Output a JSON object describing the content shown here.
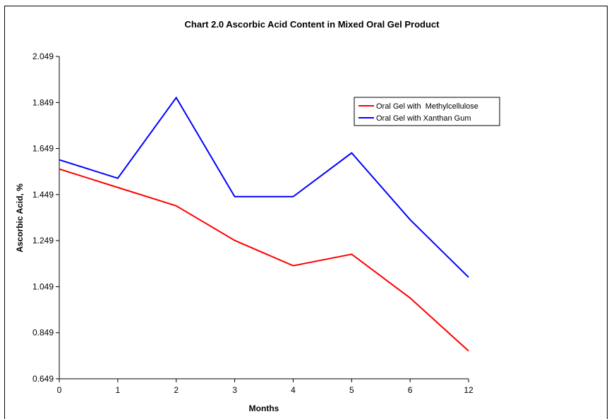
{
  "chart_data": {
    "type": "line",
    "title": "Chart 2.0 Ascorbic Acid Content in Mixed Oral Gel Product",
    "xlabel": "Months",
    "ylabel": "Ascorbic Acid, %",
    "categories": [
      "0",
      "1",
      "2",
      "3",
      "4",
      "5",
      "6",
      "12"
    ],
    "yticks": [
      "0.649",
      "0.849",
      "1.049",
      "1.249",
      "1.449",
      "1.649",
      "1.849",
      "2.049"
    ],
    "ylim": [
      0.649,
      2.049
    ],
    "grid": false,
    "legend_position": "top-right",
    "series": [
      {
        "name": "Oral Gel with  Methylcellulose",
        "color": "#ff0000",
        "values": [
          1.56,
          1.48,
          1.4,
          1.25,
          1.14,
          1.19,
          1.0,
          0.77
        ]
      },
      {
        "name": "Oral Gel with Xanthan Gum",
        "color": "#0000ff",
        "values": [
          1.6,
          1.52,
          1.87,
          1.44,
          1.44,
          1.63,
          1.34,
          1.09
        ]
      }
    ]
  }
}
